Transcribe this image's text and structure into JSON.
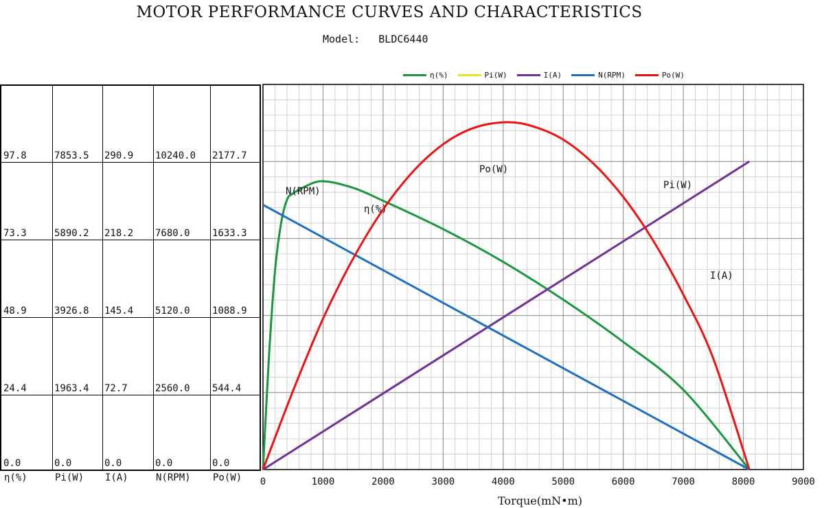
{
  "title": "MOTOR PERFORMANCE CURVES AND CHARACTERISTICS",
  "model_label": "Model:",
  "model_value": "BLDC6440",
  "legend": [
    {
      "label": "η(%)",
      "color": "#1a9641"
    },
    {
      "label": "Pi(W)",
      "color": "#e6e61a"
    },
    {
      "label": "I(A)",
      "color": "#7030a0"
    },
    {
      "label": "N(RPM)",
      "color": "#1f6fc0"
    },
    {
      "label": "Po(W)",
      "color": "#ee1111"
    }
  ],
  "table": {
    "headers": [
      "η(%)",
      "Pi(W)",
      "I(A)",
      "N(RPM)",
      "Po(W)"
    ],
    "rows": [
      [
        "97.8",
        "7853.5",
        "290.9",
        "10240.0",
        "2177.7"
      ],
      [
        "73.3",
        "5890.2",
        "218.2",
        "7680.0",
        "1633.3"
      ],
      [
        "48.9",
        "3926.8",
        "145.4",
        "5120.0",
        "1088.9"
      ],
      [
        "24.4",
        "1963.4",
        "72.7",
        "2560.0",
        "544.4"
      ],
      [
        "0.0",
        "0.0",
        "0.0",
        "0.0",
        "0.0"
      ]
    ]
  },
  "chart_data": {
    "type": "line",
    "xlabel": "Torque(mN•m)",
    "xlim": [
      0,
      9000
    ],
    "x_ticks": [
      0,
      1000,
      2000,
      3000,
      4000,
      5000,
      6000,
      7000,
      8000,
      9000
    ],
    "y_axes": {
      "eta": [
        0,
        122.2
      ],
      "pi": [
        0,
        9817
      ],
      "i": [
        0,
        363.6
      ],
      "n": [
        0,
        12800
      ],
      "po": [
        0,
        2722
      ]
    },
    "grid": true,
    "legend_position": "top",
    "series": [
      {
        "name": "η(%)",
        "axis": "eta",
        "color": "#1a9641",
        "label": "η(%)",
        "x": [
          0,
          100,
          200,
          300,
          400,
          500,
          700,
          1000,
          1500,
          2000,
          3000,
          4000,
          5000,
          6000,
          7000,
          8100
        ],
        "y": [
          0,
          36,
          63,
          78,
          85.6,
          87.6,
          89.8,
          91.5,
          89.4,
          85.3,
          76.3,
          65.9,
          53.9,
          40.5,
          25.3,
          0
        ]
      },
      {
        "name": "Pi(W)",
        "axis": "pi",
        "color": "#e6e61a",
        "label": "Pi(W)",
        "x": [
          0,
          8100
        ],
        "y": [
          0,
          7853.5
        ]
      },
      {
        "name": "I(A)",
        "axis": "i",
        "color": "#7030a0",
        "label": "I(A)",
        "x": [
          0,
          8100
        ],
        "y": [
          0,
          290.9
        ]
      },
      {
        "name": "N(RPM)",
        "axis": "n",
        "color": "#1f6fc0",
        "label": "N(RPM)",
        "x": [
          0,
          8100
        ],
        "y": [
          8800,
          0
        ]
      },
      {
        "name": "Po(W)",
        "axis": "po",
        "color": "#ee1111",
        "label": "Po(W)",
        "x": [
          0,
          500,
          1000,
          1500,
          2000,
          2500,
          3000,
          3500,
          4050,
          4500,
          5000,
          5500,
          6000,
          6500,
          7000,
          7500,
          8100
        ],
        "y": [
          0,
          556,
          1066,
          1490,
          1838,
          2107,
          2299,
          2413,
          2455,
          2425,
          2332,
          2164,
          1927,
          1617,
          1237,
          784,
          0
        ]
      }
    ]
  }
}
